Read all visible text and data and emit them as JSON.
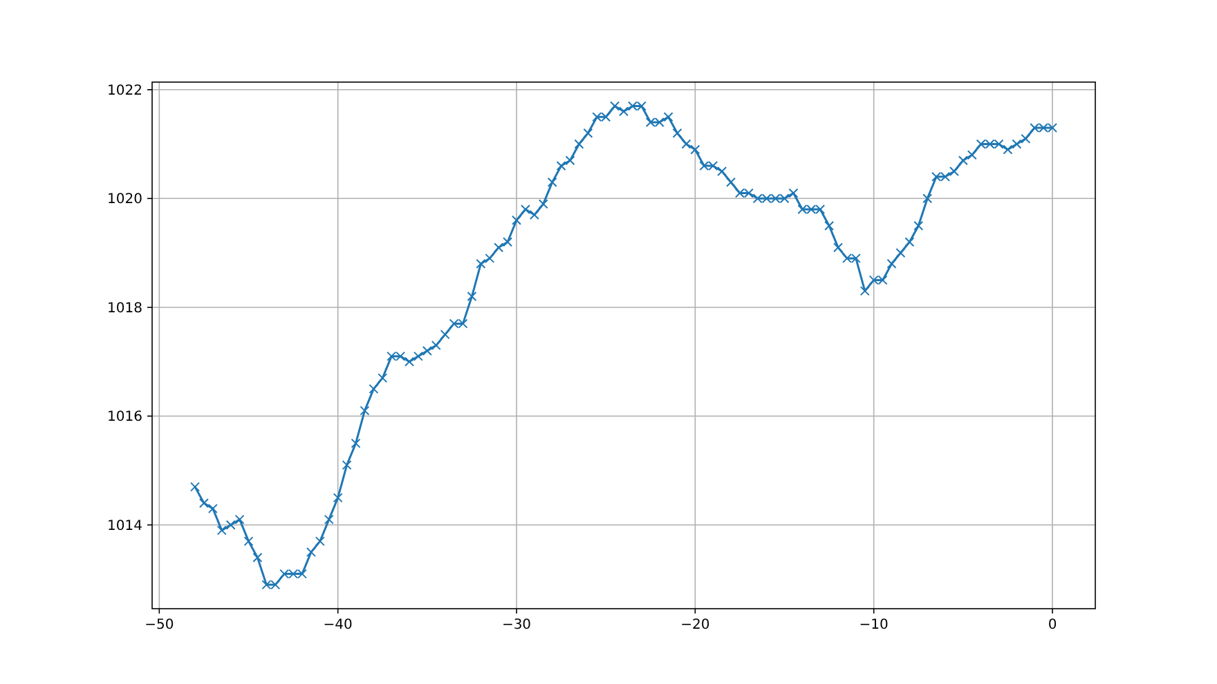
{
  "chart_data": {
    "type": "line",
    "x": [
      -48,
      -47.5,
      -47,
      -46.5,
      -46,
      -45.5,
      -45,
      -44.5,
      -44,
      -43.5,
      -43,
      -42.5,
      -42,
      -41.5,
      -41,
      -40.5,
      -40,
      -39.5,
      -39,
      -38.5,
      -38,
      -37.5,
      -37,
      -36.5,
      -36,
      -35.5,
      -35,
      -34.5,
      -34,
      -33.5,
      -33,
      -32.5,
      -32,
      -31.5,
      -31,
      -30.5,
      -30,
      -29.5,
      -29,
      -28.5,
      -28,
      -27.5,
      -27,
      -26.5,
      -26,
      -25.5,
      -25,
      -24.5,
      -24,
      -23.5,
      -23,
      -22.5,
      -22,
      -21.5,
      -21,
      -20.5,
      -20,
      -19.5,
      -19,
      -18.5,
      -18,
      -17.5,
      -17,
      -16.5,
      -16,
      -15.5,
      -15,
      -14.5,
      -14,
      -13.5,
      -13,
      -12.5,
      -12,
      -11.5,
      -11,
      -10.5,
      -10,
      -9.5,
      -9,
      -8.5,
      -8,
      -7.5,
      -7,
      -6.5,
      -6,
      -5.5,
      -5,
      -4.5,
      -4,
      -3.5,
      -3,
      -2.5,
      -2,
      -1.5,
      -1,
      -0.5,
      0
    ],
    "series": [
      {
        "color": "#1f77b4",
        "values": [
          1014.7,
          1014.4,
          1014.3,
          1013.9,
          1014.0,
          1014.1,
          1013.7,
          1013.4,
          1012.9,
          1012.9,
          1013.1,
          1013.1,
          1013.1,
          1013.5,
          1013.7,
          1014.1,
          1014.5,
          1015.1,
          1015.5,
          1016.1,
          1016.5,
          1016.7,
          1017.1,
          1017.1,
          1017.0,
          1017.1,
          1017.2,
          1017.3,
          1017.5,
          1017.7,
          1017.7,
          1018.2,
          1018.8,
          1018.9,
          1019.1,
          1019.2,
          1019.6,
          1019.8,
          1019.7,
          1019.9,
          1020.3,
          1020.6,
          1020.7,
          1021.0,
          1021.2,
          1021.5,
          1021.5,
          1021.7,
          1021.6,
          1021.7,
          1021.7,
          1021.4,
          1021.4,
          1021.5,
          1021.2,
          1021.0,
          1020.9,
          1020.6,
          1020.6,
          1020.5,
          1020.3,
          1020.1,
          1020.1,
          1020.0,
          1020.0,
          1020.0,
          1020.0,
          1020.1,
          1019.8,
          1019.8,
          1019.8,
          1019.5,
          1019.1,
          1018.9,
          1018.9,
          1018.3,
          1018.5,
          1018.5,
          1018.8,
          1019.0,
          1019.2,
          1019.5,
          1020.0,
          1020.4,
          1020.4,
          1020.5,
          1020.7,
          1020.8,
          1021.0,
          1021.0,
          1021.0,
          1020.9,
          1021.0,
          1021.1,
          1021.3,
          1021.3,
          1021.3
        ]
      }
    ],
    "xlim": [
      -50.4,
      2.4
    ],
    "ylim": [
      1012.46,
      1022.14
    ],
    "xticks": [
      {
        "value": -50,
        "label": "−50"
      },
      {
        "value": -40,
        "label": "−40"
      },
      {
        "value": -30,
        "label": "−30"
      },
      {
        "value": -20,
        "label": "−20"
      },
      {
        "value": -10,
        "label": "−10"
      },
      0
    ],
    "yticks": [
      1014,
      1016,
      1018,
      1020,
      1022
    ],
    "grid": true,
    "marker": "cross",
    "line_style": "solid"
  }
}
